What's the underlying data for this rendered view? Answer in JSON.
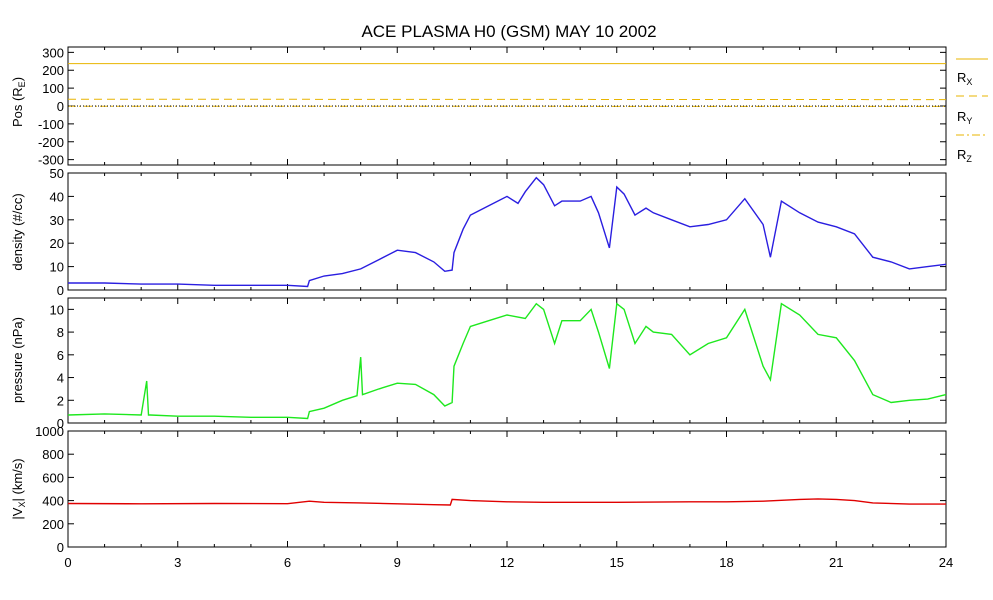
{
  "title": "ACE PLASMA H0 (GSM)   MAY 10 2002",
  "x_ticks": [
    "0",
    "3",
    "6",
    "9",
    "12",
    "15",
    "18",
    "21",
    "24"
  ],
  "colors": {
    "position": "#e8b400",
    "density": "#2a1ee0",
    "pressure": "#1ee81e",
    "vx": "#e00000",
    "axis": "#000000"
  },
  "legend": [
    {
      "main": "R",
      "sub": "X"
    },
    {
      "main": "R",
      "sub": "Y"
    },
    {
      "main": "R",
      "sub": "Z"
    }
  ],
  "chart_data": [
    {
      "type": "line",
      "ylabel_main": "Pos (R",
      "ylabel_sub": "E",
      "ylabel_end": ")",
      "ylim": [
        -330,
        330
      ],
      "y_ticks": [
        "300",
        "200",
        "100",
        "0",
        "-100",
        "-200",
        "-300"
      ],
      "xlim": [
        0,
        24
      ],
      "series": [
        {
          "name": "R_X",
          "style": "solid",
          "x": [
            0,
            24
          ],
          "values": [
            237,
            237
          ]
        },
        {
          "name": "R_Y",
          "style": "dashed",
          "x": [
            0,
            24
          ],
          "values": [
            38,
            36
          ]
        },
        {
          "name": "R_Z",
          "style": "dashdot",
          "x": [
            0,
            24
          ],
          "values": [
            -1,
            -2
          ]
        }
      ]
    },
    {
      "type": "line",
      "ylabel": "density (#/cc)",
      "ylim": [
        0,
        50
      ],
      "y_ticks": [
        "50",
        "40",
        "30",
        "20",
        "10",
        "0"
      ],
      "xlim": [
        0,
        24
      ],
      "series": [
        {
          "name": "density",
          "x": [
            0,
            1,
            2,
            3,
            4,
            5,
            6,
            6.55,
            6.6,
            7,
            7.5,
            8,
            8.5,
            9,
            9.5,
            10,
            10.3,
            10.5,
            10.55,
            10.8,
            11,
            11.5,
            12,
            12.3,
            12.5,
            12.8,
            13,
            13.3,
            13.5,
            14,
            14.3,
            14.5,
            14.8,
            15,
            15.2,
            15.5,
            15.8,
            16,
            16.5,
            17,
            17.5,
            18,
            18.5,
            19,
            19.2,
            19.5,
            20,
            20.5,
            21,
            21.5,
            22,
            22.5,
            23,
            23.5,
            24
          ],
          "values": [
            3,
            3,
            2.5,
            2.5,
            2,
            2,
            2,
            1.5,
            4,
            6,
            7,
            9,
            13,
            17,
            16,
            12,
            8,
            8.5,
            16,
            26,
            32,
            36,
            40,
            37,
            42,
            48,
            45,
            36,
            38,
            38,
            40,
            33,
            18,
            44,
            41,
            32,
            35,
            33,
            30,
            27,
            28,
            30,
            39,
            28,
            14,
            38,
            33,
            29,
            27,
            24,
            14,
            12,
            9,
            10,
            11
          ]
        }
      ]
    },
    {
      "type": "line",
      "ylabel": "pressure (nPa)",
      "ylim": [
        0,
        11
      ],
      "y_ticks": [
        "10",
        "8",
        "6",
        "4",
        "2",
        "0"
      ],
      "xlim": [
        0,
        24
      ],
      "series": [
        {
          "name": "pressure",
          "x": [
            0,
            1,
            2,
            2.15,
            2.2,
            2.25,
            3,
            4,
            5,
            6,
            6.55,
            6.6,
            7,
            7.5,
            7.9,
            8,
            8.05,
            8.5,
            9,
            9.5,
            10,
            10.3,
            10.5,
            10.55,
            10.8,
            11,
            11.5,
            12,
            12.5,
            12.8,
            13,
            13.3,
            13.5,
            14,
            14.3,
            14.5,
            14.8,
            15,
            15.2,
            15.5,
            15.8,
            16,
            16.5,
            17,
            17.5,
            18,
            18.5,
            19,
            19.2,
            19.5,
            20,
            20.5,
            21,
            21.5,
            22,
            22.5,
            23,
            23.5,
            24
          ],
          "values": [
            0.7,
            0.8,
            0.7,
            3.7,
            0.7,
            0.7,
            0.6,
            0.6,
            0.5,
            0.5,
            0.4,
            1,
            1.3,
            2,
            2.4,
            5.8,
            2.5,
            3,
            3.5,
            3.4,
            2.5,
            1.5,
            1.8,
            5,
            7,
            8.5,
            9,
            9.5,
            9.2,
            10.5,
            10,
            7,
            9,
            9,
            10,
            8,
            4.8,
            10.5,
            10,
            7,
            8.5,
            8,
            7.8,
            6,
            7,
            7.5,
            10,
            5,
            3.8,
            10.5,
            9.5,
            7.8,
            7.5,
            5.5,
            2.5,
            1.8,
            2,
            2.1,
            2.5
          ]
        }
      ]
    },
    {
      "type": "line",
      "ylabel_main": "|V",
      "ylabel_sub": "X",
      "ylabel_end": "| (km/s)",
      "ylim": [
        0,
        1000
      ],
      "y_ticks": [
        "1000",
        "800",
        "600",
        "400",
        "200",
        "0"
      ],
      "xlim": [
        0,
        24
      ],
      "series": [
        {
          "name": "|Vx|",
          "x": [
            0,
            2,
            4,
            6,
            6.6,
            7,
            8,
            9,
            10,
            10.45,
            10.5,
            11,
            12,
            13,
            15,
            17,
            18,
            19,
            20,
            20.5,
            21,
            21.5,
            22,
            23,
            24
          ],
          "values": [
            375,
            372,
            375,
            373,
            395,
            385,
            380,
            372,
            365,
            362,
            410,
            400,
            390,
            385,
            385,
            390,
            390,
            395,
            410,
            415,
            410,
            400,
            380,
            370,
            370
          ]
        }
      ]
    }
  ]
}
